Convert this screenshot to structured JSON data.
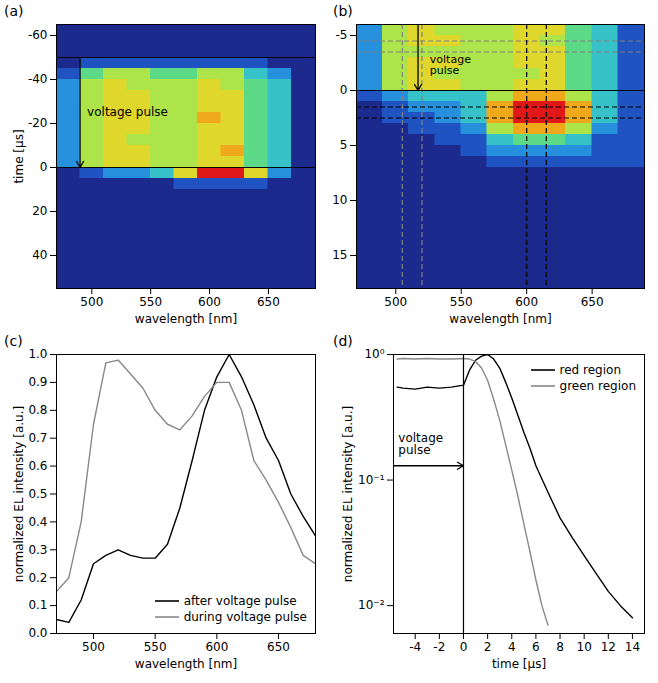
{
  "chart_data": [
    {
      "panel_label": "(a)",
      "type": "heatmap",
      "xlabel": "wavelength [nm]",
      "ylabel": "time [µs]",
      "xlim": [
        470,
        690
      ],
      "ylim": [
        -65,
        55
      ],
      "xticks": [
        500,
        550,
        600,
        650
      ],
      "yticks": [
        -60,
        -40,
        -20,
        0,
        20,
        40
      ],
      "x_bins": [
        470,
        490,
        510,
        530,
        550,
        570,
        590,
        610,
        630,
        650,
        670,
        690
      ],
      "y_bins": [
        -65,
        -60,
        -55,
        -50,
        -45,
        -40,
        -35,
        -30,
        -25,
        -20,
        -15,
        -10,
        -5,
        0,
        5,
        10,
        15,
        20,
        25,
        30,
        35,
        40,
        45,
        50,
        55
      ],
      "cells": [
        [
          1,
          1,
          1,
          1,
          1,
          1,
          1,
          1,
          1,
          1,
          1
        ],
        [
          1,
          1,
          1,
          1,
          1,
          1,
          1,
          1,
          1,
          1,
          1
        ],
        [
          1,
          1,
          1,
          1,
          1,
          1,
          1,
          1,
          1,
          1,
          1
        ],
        [
          1,
          2,
          2,
          2,
          2,
          2,
          2,
          2,
          2,
          1,
          1
        ],
        [
          2,
          5,
          6,
          6,
          5,
          5,
          6,
          6,
          4,
          3,
          1
        ],
        [
          3,
          6,
          7,
          6,
          6,
          6,
          7,
          6,
          5,
          4,
          1
        ],
        [
          3,
          6,
          7,
          7,
          6,
          6,
          7,
          7,
          5,
          4,
          1
        ],
        [
          3,
          6,
          7,
          7,
          6,
          6,
          7,
          7,
          5,
          4,
          1
        ],
        [
          3,
          6,
          7,
          7,
          6,
          6,
          8,
          7,
          5,
          4,
          1
        ],
        [
          3,
          6,
          7,
          7,
          6,
          6,
          7,
          7,
          5,
          4,
          1
        ],
        [
          3,
          6,
          7,
          6,
          6,
          6,
          7,
          7,
          5,
          4,
          1
        ],
        [
          3,
          6,
          7,
          7,
          6,
          6,
          7,
          8,
          5,
          4,
          1
        ],
        [
          3,
          6,
          7,
          7,
          6,
          6,
          7,
          7,
          5,
          4,
          1
        ],
        [
          1,
          2,
          3,
          3,
          4,
          7,
          10,
          10,
          7,
          3,
          1
        ],
        [
          1,
          1,
          1,
          1,
          1,
          2,
          2,
          2,
          2,
          1,
          1
        ],
        [
          1,
          1,
          1,
          1,
          1,
          1,
          1,
          1,
          1,
          1,
          1
        ],
        [
          1,
          1,
          1,
          1,
          1,
          1,
          1,
          1,
          1,
          1,
          1
        ],
        [
          1,
          1,
          1,
          1,
          1,
          1,
          1,
          1,
          1,
          1,
          1
        ],
        [
          1,
          1,
          1,
          1,
          1,
          1,
          1,
          1,
          1,
          1,
          1
        ],
        [
          1,
          1,
          1,
          1,
          1,
          1,
          1,
          1,
          1,
          1,
          1
        ],
        [
          1,
          1,
          1,
          1,
          1,
          1,
          1,
          1,
          1,
          1,
          1
        ],
        [
          1,
          1,
          1,
          1,
          1,
          1,
          1,
          1,
          1,
          1,
          1
        ],
        [
          1,
          1,
          1,
          1,
          1,
          1,
          1,
          1,
          1,
          1,
          1
        ],
        [
          1,
          1,
          1,
          1,
          1,
          1,
          1,
          1,
          1,
          1,
          1
        ]
      ],
      "rules": [
        {
          "orient": "h",
          "value": -50,
          "color": "black",
          "line_style": "solid"
        },
        {
          "orient": "h",
          "value": 0,
          "color": "black",
          "line_style": "solid"
        }
      ],
      "arrows": [
        {
          "x1": 490,
          "y1": -50,
          "x2": 490,
          "y2": 0
        }
      ],
      "annotations": [
        {
          "text": "voltage pulse",
          "x": 496,
          "y": -25
        }
      ]
    },
    {
      "panel_label": "(b)",
      "type": "heatmap",
      "xlabel": "wavelength [nm]",
      "xlim": [
        470,
        690
      ],
      "ylim": [
        -6,
        18
      ],
      "xticks": [
        500,
        550,
        600,
        650
      ],
      "yticks": [
        -5,
        0,
        5,
        10,
        15
      ],
      "x_bins": [
        470,
        490,
        510,
        530,
        550,
        570,
        590,
        610,
        630,
        650,
        670,
        690
      ],
      "y_bins": [
        -6,
        -5,
        -4,
        -3,
        -2,
        -1,
        0,
        1,
        2,
        3,
        4,
        5,
        6,
        7,
        8,
        9,
        10,
        11,
        12,
        13,
        14,
        15,
        16,
        17,
        18
      ],
      "cells": [
        [
          3,
          6,
          7,
          6,
          6,
          6,
          7,
          7,
          5,
          4,
          2
        ],
        [
          3,
          6,
          7,
          7,
          6,
          6,
          7,
          6,
          5,
          4,
          2
        ],
        [
          3,
          6,
          6,
          6,
          6,
          6,
          7,
          7,
          5,
          4,
          2
        ],
        [
          3,
          6,
          7,
          7,
          6,
          6,
          7,
          7,
          5,
          4,
          2
        ],
        [
          3,
          6,
          7,
          6,
          6,
          6,
          6,
          7,
          5,
          4,
          2
        ],
        [
          3,
          6,
          7,
          7,
          6,
          6,
          7,
          7,
          5,
          4,
          2
        ],
        [
          2,
          3,
          4,
          4,
          4,
          6,
          8,
          8,
          6,
          4,
          2
        ],
        [
          1,
          2,
          3,
          3,
          4,
          8,
          10,
          10,
          8,
          4,
          2
        ],
        [
          1,
          2,
          2,
          3,
          4,
          8,
          10,
          10,
          8,
          4,
          2
        ],
        [
          1,
          1,
          2,
          2,
          3,
          6,
          8,
          8,
          6,
          3,
          2
        ],
        [
          1,
          1,
          1,
          2,
          2,
          4,
          5,
          5,
          4,
          2,
          2
        ],
        [
          1,
          1,
          1,
          1,
          2,
          3,
          3,
          3,
          3,
          2,
          2
        ],
        [
          1,
          1,
          1,
          1,
          1,
          2,
          2,
          2,
          2,
          2,
          2
        ],
        [
          1,
          1,
          1,
          1,
          1,
          1,
          1,
          1,
          1,
          1,
          1
        ],
        [
          1,
          1,
          1,
          1,
          1,
          1,
          1,
          1,
          1,
          1,
          1
        ],
        [
          1,
          1,
          1,
          1,
          1,
          1,
          1,
          1,
          1,
          1,
          1
        ],
        [
          1,
          1,
          1,
          1,
          1,
          1,
          1,
          1,
          1,
          1,
          1
        ],
        [
          1,
          1,
          1,
          1,
          1,
          1,
          1,
          1,
          1,
          1,
          1
        ],
        [
          1,
          1,
          1,
          1,
          1,
          1,
          1,
          1,
          1,
          1,
          1
        ],
        [
          1,
          1,
          1,
          1,
          1,
          1,
          1,
          1,
          1,
          1,
          1
        ],
        [
          1,
          1,
          1,
          1,
          1,
          1,
          1,
          1,
          1,
          1,
          1
        ],
        [
          1,
          1,
          1,
          1,
          1,
          1,
          1,
          1,
          1,
          1,
          1
        ],
        [
          1,
          1,
          1,
          1,
          1,
          1,
          1,
          1,
          1,
          1,
          1
        ],
        [
          1,
          1,
          1,
          1,
          1,
          1,
          1,
          1,
          1,
          1,
          1
        ]
      ],
      "rules": [
        {
          "orient": "v",
          "value": 505,
          "color": "gray",
          "line_style": "dashed"
        },
        {
          "orient": "v",
          "value": 520,
          "color": "gray",
          "line_style": "dashed"
        },
        {
          "orient": "h",
          "value": -4.5,
          "color": "gray",
          "line_style": "dashed"
        },
        {
          "orient": "h",
          "value": -3.5,
          "color": "gray",
          "line_style": "dashed"
        },
        {
          "orient": "h",
          "value": 0,
          "color": "black",
          "line_style": "solid"
        },
        {
          "orient": "v",
          "value": 600,
          "color": "black",
          "line_style": "dashed"
        },
        {
          "orient": "v",
          "value": 615,
          "color": "black",
          "line_style": "dashed"
        },
        {
          "orient": "h",
          "value": 1.5,
          "color": "black",
          "line_style": "dashed"
        },
        {
          "orient": "h",
          "value": 2.5,
          "color": "black",
          "line_style": "dashed"
        }
      ],
      "arrows": [
        {
          "x1": 517,
          "y1": -6,
          "x2": 517,
          "y2": 0
        }
      ],
      "annotations": [
        {
          "text": "voltage pulse",
          "x": 526,
          "y": -3.2
        }
      ]
    },
    {
      "panel_label": "(c)",
      "type": "line",
      "xlabel": "wavelength [nm]",
      "ylabel": "normalized EL intensity [a.u.]",
      "xlim": [
        470,
        680
      ],
      "ylim": [
        0,
        1
      ],
      "xticks": [
        500,
        550,
        600,
        650
      ],
      "yticks": [
        {
          "value": 0,
          "label": "0.0"
        },
        {
          "value": 0.1,
          "label": "0.1"
        },
        {
          "value": 0.2,
          "label": "0.2"
        },
        {
          "value": 0.3,
          "label": "0.3"
        },
        {
          "value": 0.4,
          "label": "0.4"
        },
        {
          "value": 0.5,
          "label": "0.5"
        },
        {
          "value": 0.6,
          "label": "0.6"
        },
        {
          "value": 0.7,
          "label": "0.7"
        },
        {
          "value": 0.8,
          "label": "0.8"
        },
        {
          "value": 0.9,
          "label": "0.9"
        },
        {
          "value": 1,
          "label": "1.0"
        }
      ],
      "legend": "lower right",
      "x": [
        470,
        480,
        490,
        500,
        510,
        520,
        530,
        540,
        550,
        560,
        570,
        580,
        590,
        600,
        610,
        620,
        630,
        640,
        650,
        660,
        670,
        680
      ],
      "series": [
        {
          "name": "after voltage pulse",
          "color": "black",
          "values": [
            0.05,
            0.04,
            0.12,
            0.25,
            0.28,
            0.3,
            0.28,
            0.27,
            0.27,
            0.32,
            0.45,
            0.62,
            0.8,
            0.92,
            1.0,
            0.92,
            0.82,
            0.7,
            0.62,
            0.5,
            0.42,
            0.35
          ]
        },
        {
          "name": "during voltage pulse",
          "color": "#888888",
          "values": [
            0.15,
            0.2,
            0.4,
            0.75,
            0.97,
            0.98,
            0.93,
            0.88,
            0.8,
            0.75,
            0.73,
            0.78,
            0.85,
            0.9,
            0.9,
            0.8,
            0.62,
            0.55,
            0.47,
            0.38,
            0.28,
            0.25
          ]
        }
      ]
    },
    {
      "panel_label": "(d)",
      "type": "line",
      "xlabel": "time [µs]",
      "ylabel": "normalized EL intensity [a.u.]",
      "log": "y",
      "xlim": [
        -5.8,
        15
      ],
      "ylim": [
        0.006,
        1
      ],
      "xticks": [
        -4,
        -2,
        0,
        2,
        4,
        6,
        8,
        10,
        12,
        14
      ],
      "yticks": [
        {
          "value": 0.01,
          "label": "10⁻²"
        },
        {
          "value": 0.1,
          "label": "10⁻¹"
        },
        {
          "value": 1,
          "label": "10⁰"
        }
      ],
      "legend": "upper right",
      "series": [
        {
          "name": "red region",
          "color": "black",
          "x": [
            -5.5,
            -5,
            -4,
            -3,
            -2,
            -1,
            0,
            0.5,
            1,
            1.5,
            2,
            2.5,
            3,
            3.5,
            4,
            4.5,
            5,
            5.5,
            6,
            7,
            8,
            9,
            10,
            11,
            12,
            13,
            14
          ],
          "values": [
            0.55,
            0.54,
            0.53,
            0.55,
            0.54,
            0.55,
            0.57,
            0.75,
            0.9,
            0.97,
            1.0,
            0.92,
            0.78,
            0.6,
            0.45,
            0.33,
            0.24,
            0.18,
            0.13,
            0.08,
            0.05,
            0.035,
            0.025,
            0.018,
            0.013,
            0.01,
            0.008
          ]
        },
        {
          "name": "green region",
          "color": "#888888",
          "x": [
            -5.5,
            -5,
            -4,
            -3,
            -2,
            -1,
            0,
            0.5,
            1,
            1.5,
            2,
            2.5,
            3,
            3.5,
            4,
            4.5,
            5,
            5.5,
            6,
            6.5,
            7
          ],
          "values": [
            0.92,
            0.93,
            0.92,
            0.93,
            0.92,
            0.92,
            0.93,
            0.92,
            0.88,
            0.78,
            0.62,
            0.44,
            0.3,
            0.19,
            0.12,
            0.075,
            0.045,
            0.027,
            0.016,
            0.01,
            0.007
          ]
        }
      ],
      "rules": [
        {
          "orient": "v",
          "value": 0,
          "color": "black",
          "line_style": "solid"
        }
      ],
      "arrows": [
        {
          "x1": -5.8,
          "y1": 0.13,
          "x2": 0,
          "y2": 0.13
        }
      ],
      "annotations": [
        {
          "text": "voltage pulse",
          "x": -5.4,
          "y": 0.16
        }
      ]
    }
  ]
}
